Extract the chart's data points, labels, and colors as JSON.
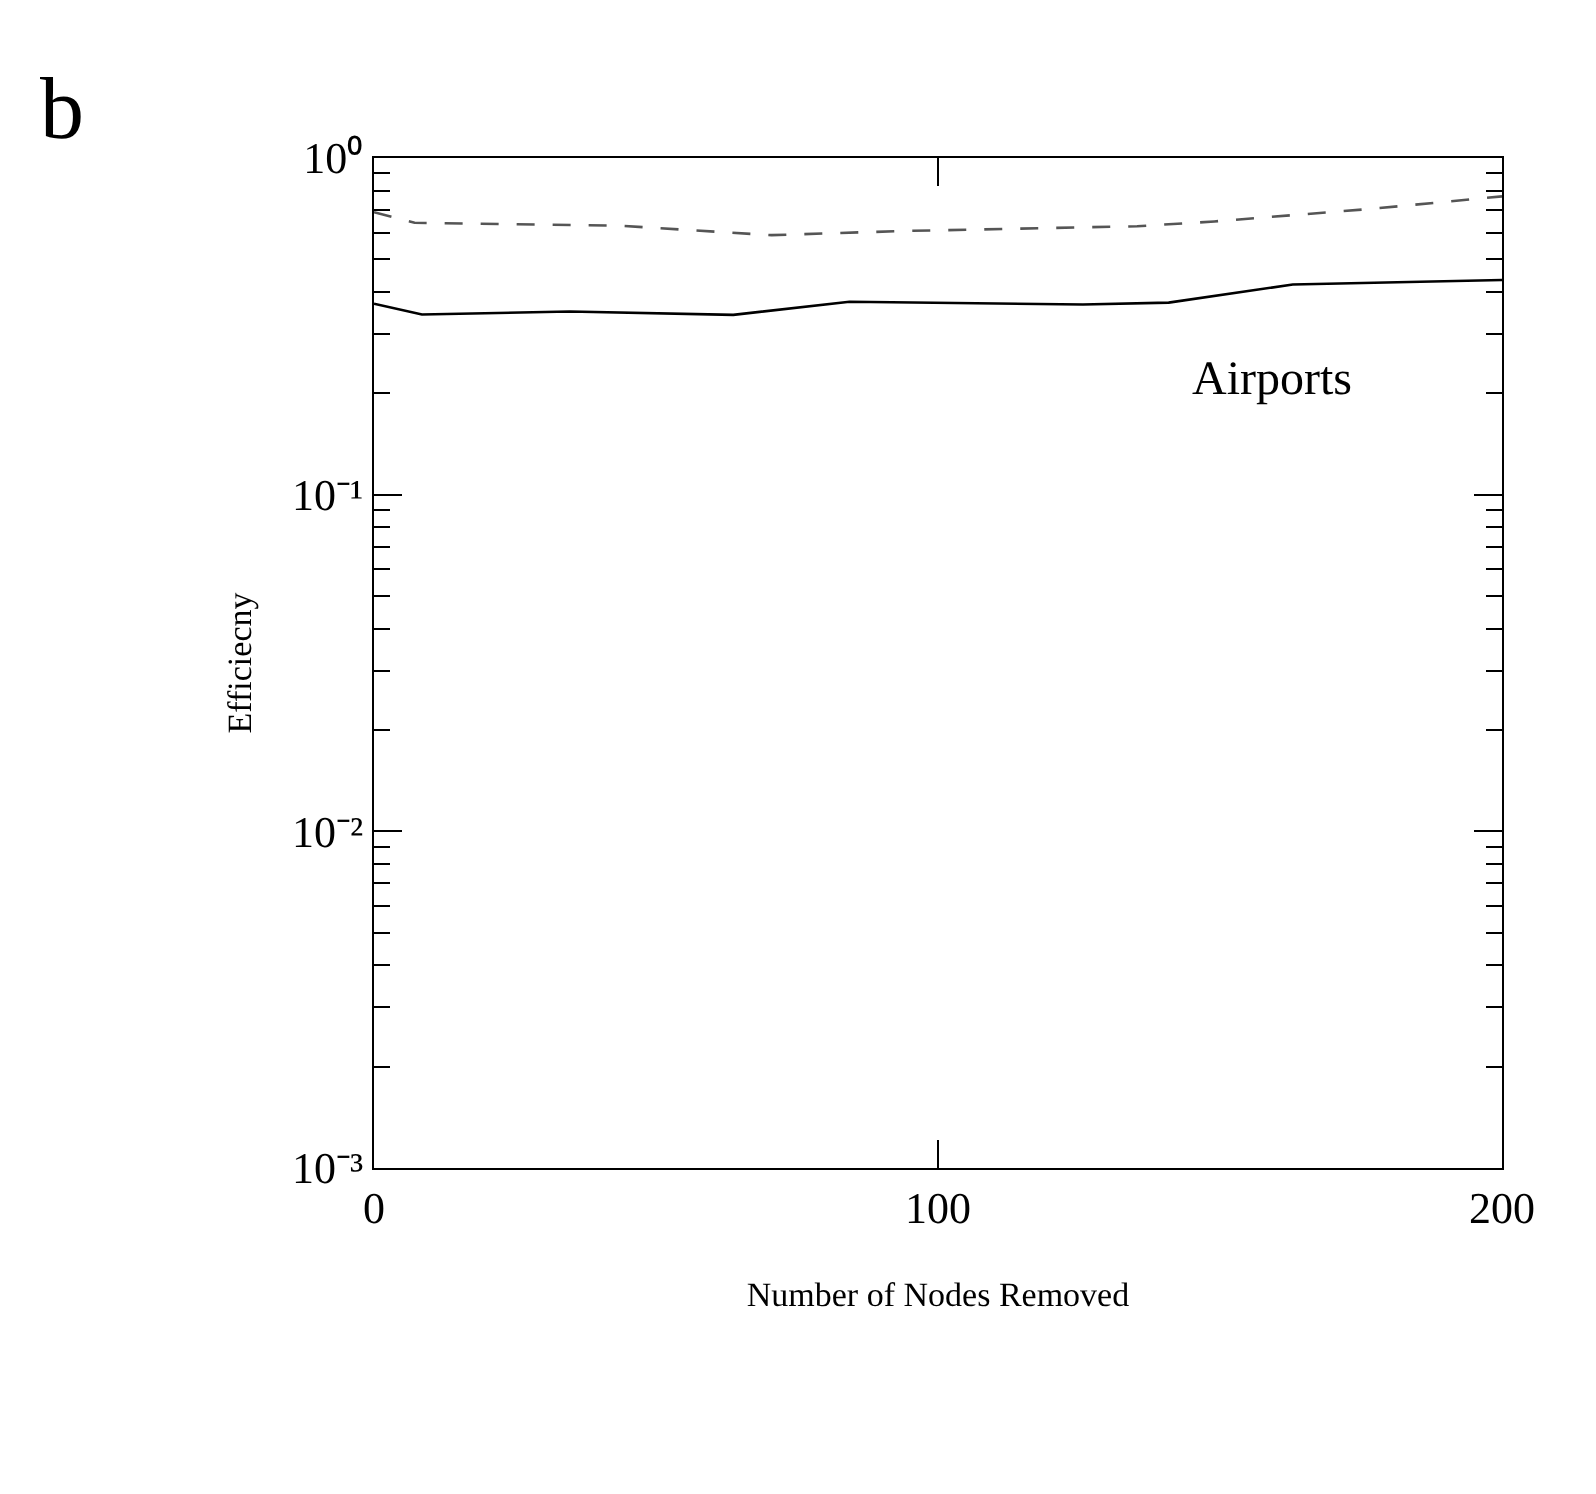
{
  "chart_data": {
    "type": "line",
    "xlabel": "Number of Nodes Removed",
    "ylabel": "Efficiecny",
    "annotations": [
      "b",
      "Airports"
    ],
    "series": [
      {
        "color": "#000000",
        "line_style": "solid",
        "x": [
          0,
          8.5,
          34.7,
          63.7,
          84.3,
          125.7,
          140.9,
          162.9,
          200
        ],
        "values": [
          0.369,
          0.343,
          0.35,
          0.342,
          0.374,
          0.367,
          0.372,
          0.421,
          0.434
        ]
      },
      {
        "color": "#555555",
        "line_style": "dashed",
        "x": [
          0,
          7.2,
          43,
          70.5,
          93.9,
          135.3,
          149,
          176.7,
          200
        ],
        "values": [
          0.69,
          0.642,
          0.63,
          0.59,
          0.607,
          0.627,
          0.648,
          0.706,
          0.769
        ]
      }
    ],
    "log": "y",
    "xlim": [
      0,
      200
    ],
    "ylim": [
      0.001,
      1
    ],
    "xticks": [
      0,
      100,
      200
    ],
    "yticks": [
      {
        "value": 0.001,
        "label": "10⁻³"
      },
      {
        "value": 0.01,
        "label": "10⁻²"
      },
      {
        "value": 0.1,
        "label": "10⁻¹"
      },
      {
        "value": 1,
        "label": "10⁰"
      }
    ],
    "marker": "none"
  }
}
